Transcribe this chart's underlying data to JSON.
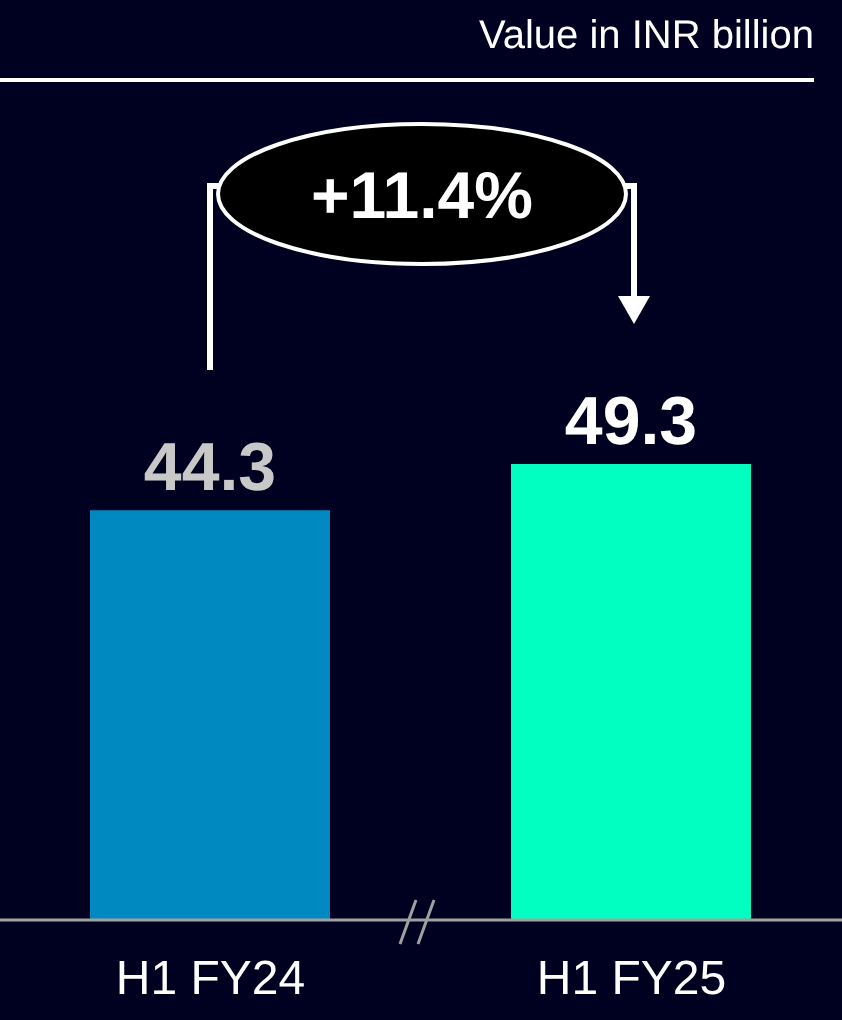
{
  "chart_data": {
    "type": "bar",
    "subtitle": "Value in INR billion",
    "categories": [
      "H1 FY24",
      "H1 FY25"
    ],
    "values": [
      44.3,
      49.3
    ],
    "colors": [
      "#0088c0",
      "#00ffc0"
    ],
    "data_labels": true,
    "annotations": [
      "+11.4%"
    ],
    "grid": false,
    "legend": false
  }
}
